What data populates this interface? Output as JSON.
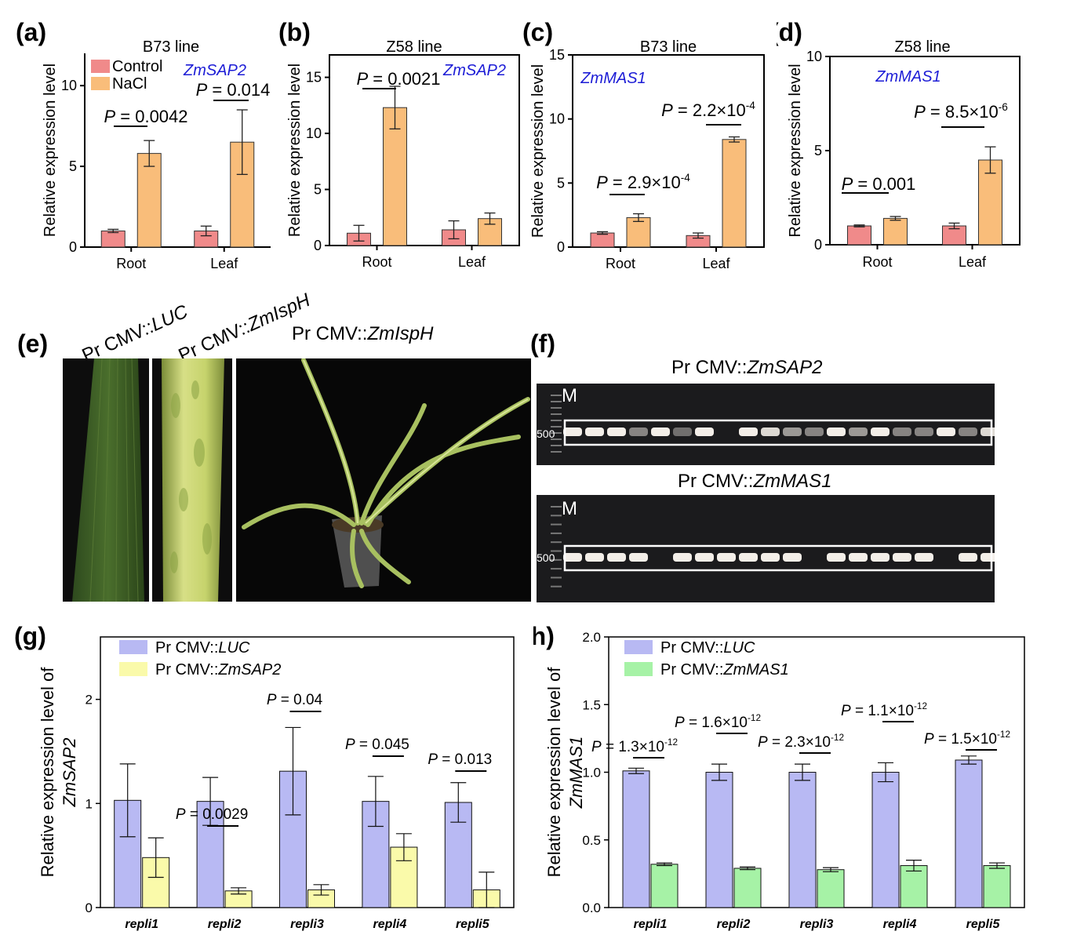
{
  "colors": {
    "control": "#f08a8a",
    "nacl": "#f9bd7a",
    "luc": "#b8b9f3",
    "sap2": "#fafaaa",
    "mas1": "#a6f2a6",
    "gene_label": "#1c1cd6"
  },
  "chart_data": [
    {
      "id": "a",
      "type": "bar",
      "panel_letter": "(a)",
      "title": "B73 line",
      "gene": "ZmSAP2",
      "ylabel": "Relative expression level",
      "xlabel": "",
      "ylim": [
        0,
        12
      ],
      "yticks": [
        0,
        5,
        10
      ],
      "categories": [
        "Root",
        "Leaf"
      ],
      "series": [
        {
          "name": "Control",
          "color_key": "control",
          "values": [
            1.0,
            1.0
          ],
          "errors": [
            0.1,
            0.3
          ]
        },
        {
          "name": "NaCl",
          "color_key": "nacl",
          "values": [
            5.8,
            6.5
          ],
          "errors": [
            0.8,
            2.0
          ]
        }
      ],
      "legend": [
        "Control",
        "NaCl"
      ],
      "pvalues": [
        {
          "category": "Root",
          "text": "P = 0.0042",
          "prefix": "P",
          "value": " = 0.0042",
          "exp": ""
        },
        {
          "category": "Leaf",
          "text": "P = 0.014",
          "prefix": "P",
          "value": " = 0.014",
          "exp": ""
        }
      ]
    },
    {
      "id": "b",
      "type": "bar",
      "panel_letter": "(b)",
      "title": "Z58 line",
      "gene": "ZmSAP2",
      "ylabel": "Relative expression level",
      "xlabel": "",
      "ylim": [
        0,
        17
      ],
      "yticks": [
        0,
        5,
        10,
        15
      ],
      "categories": [
        "Root",
        "Leaf"
      ],
      "series": [
        {
          "name": "Control",
          "color_key": "control",
          "values": [
            1.1,
            1.4
          ],
          "errors": [
            0.7,
            0.8
          ]
        },
        {
          "name": "NaCl",
          "color_key": "nacl",
          "values": [
            12.3,
            2.4
          ],
          "errors": [
            1.9,
            0.5
          ]
        }
      ],
      "pvalues": [
        {
          "category": "Root",
          "text": "P = 0.0021",
          "prefix": "P",
          "value": " = 0.0021",
          "exp": ""
        }
      ]
    },
    {
      "id": "c",
      "type": "bar",
      "panel_letter": "(c)",
      "title": "B73 line",
      "gene": "ZmMAS1",
      "ylabel": "Relative expression level",
      "xlabel": "",
      "ylim": [
        0,
        15
      ],
      "yticks": [
        0,
        5,
        10,
        15
      ],
      "categories": [
        "Root",
        "Leaf"
      ],
      "series": [
        {
          "name": "Control",
          "color_key": "control",
          "values": [
            1.1,
            0.9
          ],
          "errors": [
            0.1,
            0.2
          ]
        },
        {
          "name": "NaCl",
          "color_key": "nacl",
          "values": [
            2.3,
            8.4
          ],
          "errors": [
            0.3,
            0.2
          ]
        }
      ],
      "pvalues": [
        {
          "category": "Root",
          "text": "P = 2.9×10-4",
          "prefix": "P",
          "value": " = 2.9×10",
          "exp": "-4"
        },
        {
          "category": "Leaf",
          "text": "P = 2.2×10-4",
          "prefix": "P",
          "value": " = 2.2×10",
          "exp": "-4"
        }
      ]
    },
    {
      "id": "d",
      "type": "bar",
      "panel_letter": "(d)",
      "title": "Z58 line",
      "gene": "ZmMAS1",
      "ylabel": "Relative expression level",
      "xlabel": "",
      "ylim": [
        0,
        10
      ],
      "yticks": [
        0,
        5,
        10
      ],
      "categories": [
        "Root",
        "Leaf"
      ],
      "series": [
        {
          "name": "Control",
          "color_key": "control",
          "values": [
            1.0,
            1.0
          ],
          "errors": [
            0.05,
            0.15
          ]
        },
        {
          "name": "NaCl",
          "color_key": "nacl",
          "values": [
            1.4,
            4.5
          ],
          "errors": [
            0.1,
            0.7
          ]
        }
      ],
      "pvalues": [
        {
          "category": "Root",
          "text": "P = 0.001",
          "prefix": "P",
          "value": " = 0.001",
          "exp": ""
        },
        {
          "category": "Leaf",
          "text": "P = 8.5×10-6",
          "prefix": "P",
          "value": " = 8.5×10",
          "exp": "-6"
        }
      ]
    },
    {
      "id": "g",
      "type": "bar",
      "panel_letter": "(g)",
      "ylabel_line1": "Relative expression level of",
      "ylabel_gene": "ZmSAP2",
      "xlabel": "",
      "ylim": [
        0,
        2.6
      ],
      "yticks": [
        0,
        1,
        2
      ],
      "categories": [
        "repli1",
        "repli2",
        "repli3",
        "repli4",
        "repli5"
      ],
      "series": [
        {
          "name": "Pr CMV::LUC",
          "name_plain": "Pr CMV::",
          "name_italic": "LUC",
          "color_key": "luc",
          "values": [
            1.03,
            1.02,
            1.31,
            1.02,
            1.01
          ],
          "errors": [
            0.35,
            0.23,
            0.42,
            0.24,
            0.19
          ]
        },
        {
          "name": "Pr CMV::ZmSAP2",
          "name_plain": "Pr CMV::",
          "name_italic": "ZmSAP2",
          "color_key": "sap2",
          "values": [
            0.48,
            0.16,
            0.17,
            0.58,
            0.17
          ],
          "errors": [
            0.19,
            0.03,
            0.05,
            0.13,
            0.17
          ]
        }
      ],
      "pvalues": [
        {
          "category": "repli2",
          "text": "P = 0.0029",
          "prefix": "P",
          "value": " = 0.0029",
          "exp": ""
        },
        {
          "category": "repli3",
          "text": "P = 0.04",
          "prefix": "P",
          "value": " = 0.04",
          "exp": ""
        },
        {
          "category": "repli4",
          "text": "P = 0.045",
          "prefix": "P",
          "value": " = 0.045",
          "exp": ""
        },
        {
          "category": "repli5",
          "text": "P = 0.013",
          "prefix": "P",
          "value": " = 0.013",
          "exp": ""
        }
      ]
    },
    {
      "id": "h",
      "type": "bar",
      "panel_letter": "(h)",
      "ylabel_line1": "Relative expression level of",
      "ylabel_gene": "ZmMAS1",
      "xlabel": "",
      "ylim": [
        0,
        2.0
      ],
      "yticks": [
        0.0,
        0.5,
        1.0,
        1.5,
        2.0
      ],
      "ytick_labels": [
        "0.0",
        "0.5",
        "1.0",
        "1.5",
        "2.0"
      ],
      "categories": [
        "repli1",
        "repli2",
        "repli3",
        "repli4",
        "repli5"
      ],
      "series": [
        {
          "name": "Pr CMV::LUC",
          "name_plain": "Pr CMV::",
          "name_italic": "LUC",
          "color_key": "luc",
          "values": [
            1.01,
            1.0,
            1.0,
            1.0,
            1.09
          ],
          "errors": [
            0.02,
            0.06,
            0.06,
            0.07,
            0.03
          ]
        },
        {
          "name": "Pr CMV::ZmMAS1",
          "name_plain": "Pr CMV::",
          "name_italic": "ZmMAS1",
          "color_key": "mas1",
          "values": [
            0.32,
            0.29,
            0.28,
            0.31,
            0.31
          ],
          "errors": [
            0.01,
            0.01,
            0.015,
            0.04,
            0.02
          ]
        }
      ],
      "pvalues": [
        {
          "category": "repli1",
          "text": "P = 1.3×10-12",
          "prefix": "P",
          "value": " = 1.3×10",
          "exp": "-12"
        },
        {
          "category": "repli2",
          "text": "P = 1.6×10-12",
          "prefix": "P",
          "value": " = 1.6×10",
          "exp": "-12"
        },
        {
          "category": "repli3",
          "text": "P = 2.3×10-12",
          "prefix": "P",
          "value": " = 2.3×10",
          "exp": "-12"
        },
        {
          "category": "repli4",
          "text": "P = 1.1×10-12",
          "prefix": "P",
          "value": " = 1.1×10",
          "exp": "-12"
        },
        {
          "category": "repli5",
          "text": "P = 1.5×10-12",
          "prefix": "P",
          "value": " = 1.5×10",
          "exp": "-12"
        }
      ]
    }
  ],
  "panel_e": {
    "letter": "(e)",
    "label_luc_plain": "Pr CMV::",
    "label_luc_italic": "LUC",
    "label_isph_plain": "Pr CMV::",
    "label_isph_italic": "ZmIspH",
    "label_plant_plain": "Pr CMV::",
    "label_plant_italic": "ZmIspH"
  },
  "panel_f": {
    "letter": "(f)",
    "gel1_title_plain": "Pr CMV::",
    "gel1_title_italic": "ZmSAP2",
    "gel2_title_plain": "Pr CMV::",
    "gel2_title_italic": "ZmMAS1",
    "marker": "M",
    "size_label": "500"
  }
}
